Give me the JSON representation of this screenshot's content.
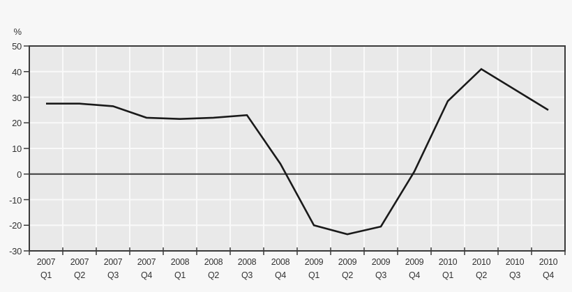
{
  "chart": {
    "unit_label": "%"
  },
  "colors": {
    "page_bg": "#f7f7f7",
    "plot_bg": "#e9e9e9",
    "grid": "#f9f9f9",
    "axis": "#3a3a3a",
    "line": "#1a1a1a",
    "text": "#333333"
  },
  "chart_data": {
    "type": "line",
    "title": "",
    "xlabel": "",
    "ylabel": "%",
    "ylim": [
      -30,
      50
    ],
    "yticks": [
      50,
      40,
      30,
      20,
      10,
      0,
      -10,
      -20,
      -30
    ],
    "grid": true,
    "legend": "none",
    "zero_line": true,
    "categories": [
      {
        "year": "2007",
        "quarter": "Q1"
      },
      {
        "year": "2007",
        "quarter": "Q2"
      },
      {
        "year": "2007",
        "quarter": "Q3"
      },
      {
        "year": "2007",
        "quarter": "Q4"
      },
      {
        "year": "2008",
        "quarter": "Q1"
      },
      {
        "year": "2008",
        "quarter": "Q2"
      },
      {
        "year": "2008",
        "quarter": "Q3"
      },
      {
        "year": "2008",
        "quarter": "Q4"
      },
      {
        "year": "2009",
        "quarter": "Q1"
      },
      {
        "year": "2009",
        "quarter": "Q2"
      },
      {
        "year": "2009",
        "quarter": "Q3"
      },
      {
        "year": "2009",
        "quarter": "Q4"
      },
      {
        "year": "2010",
        "quarter": "Q1"
      },
      {
        "year": "2010",
        "quarter": "Q2"
      },
      {
        "year": "2010",
        "quarter": "Q3"
      },
      {
        "year": "2010",
        "quarter": "Q4"
      }
    ],
    "values": [
      27.5,
      27.5,
      26.5,
      22,
      21.5,
      22,
      23,
      4,
      -20,
      -23.5,
      -20.5,
      1,
      28.5,
      41,
      33,
      25
    ]
  }
}
